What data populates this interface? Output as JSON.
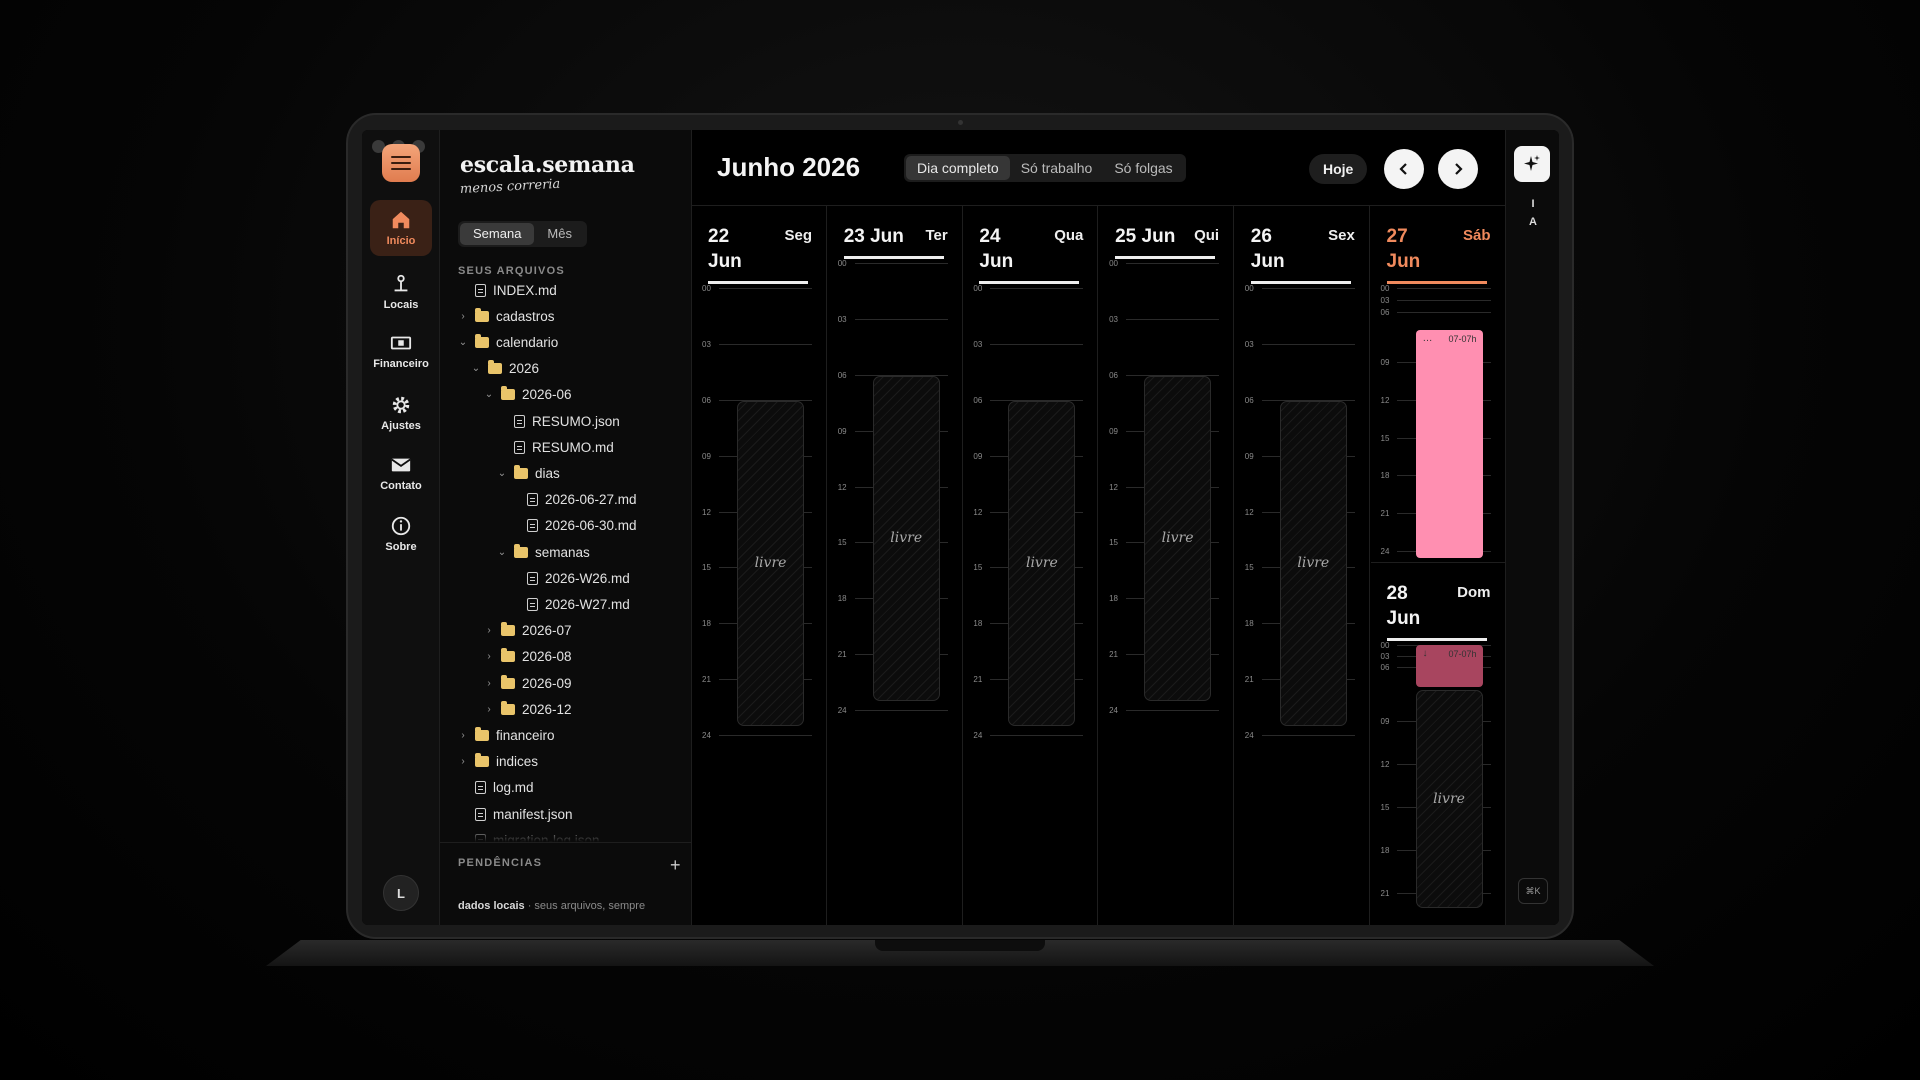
{
  "app": {
    "brand": "escala.semana",
    "tagline": "menos correria",
    "view_tabs": [
      {
        "label": "Semana",
        "active": true
      },
      {
        "label": "Mês",
        "active": false
      }
    ],
    "user_initial": "L"
  },
  "rail": {
    "items": [
      {
        "label": "Início",
        "icon": "home-icon",
        "active": true
      },
      {
        "label": "Locais",
        "icon": "location-pin-icon",
        "active": false
      },
      {
        "label": "Financeiro",
        "icon": "money-icon",
        "active": false
      },
      {
        "label": "Ajustes",
        "icon": "gear-icon",
        "active": false
      },
      {
        "label": "Contato",
        "icon": "envelope-icon",
        "active": false
      },
      {
        "label": "Sobre",
        "icon": "info-icon",
        "active": false
      }
    ]
  },
  "files": {
    "section_title": "SEUS ARQUIVOS",
    "tree": [
      {
        "label": "INDEX.md",
        "type": "file",
        "depth": 0
      },
      {
        "label": "cadastros",
        "type": "folder",
        "depth": 0,
        "expanded": false
      },
      {
        "label": "calendario",
        "type": "folder",
        "depth": 0,
        "expanded": true
      },
      {
        "label": "2026",
        "type": "folder",
        "depth": 1,
        "expanded": true
      },
      {
        "label": "2026-06",
        "type": "folder",
        "depth": 2,
        "expanded": true
      },
      {
        "label": "RESUMO.json",
        "type": "file",
        "depth": 3
      },
      {
        "label": "RESUMO.md",
        "type": "file",
        "depth": 3
      },
      {
        "label": "dias",
        "type": "folder",
        "depth": 3,
        "expanded": true
      },
      {
        "label": "2026-06-27.md",
        "type": "file",
        "depth": 4
      },
      {
        "label": "2026-06-30.md",
        "type": "file",
        "depth": 4
      },
      {
        "label": "semanas",
        "type": "folder",
        "depth": 3,
        "expanded": true
      },
      {
        "label": "2026-W26.md",
        "type": "file",
        "depth": 4
      },
      {
        "label": "2026-W27.md",
        "type": "file",
        "depth": 4
      },
      {
        "label": "2026-07",
        "type": "folder",
        "depth": 2,
        "expanded": false
      },
      {
        "label": "2026-08",
        "type": "folder",
        "depth": 2,
        "expanded": false
      },
      {
        "label": "2026-09",
        "type": "folder",
        "depth": 2,
        "expanded": false
      },
      {
        "label": "2026-12",
        "type": "folder",
        "depth": 2,
        "expanded": false
      },
      {
        "label": "financeiro",
        "type": "folder",
        "depth": 0,
        "expanded": false
      },
      {
        "label": "indices",
        "type": "folder",
        "depth": 0,
        "expanded": false
      },
      {
        "label": "log.md",
        "type": "file",
        "depth": 0
      },
      {
        "label": "manifest.json",
        "type": "file",
        "depth": 0
      },
      {
        "label": "migration-log.json",
        "type": "file",
        "depth": 0
      }
    ],
    "pending_title": "PENDÊNCIAS",
    "footer_bold": "dados locais",
    "footer_text": " · seus arquivos, sempre"
  },
  "calendar": {
    "month_title": "Junho 2026",
    "filters": [
      {
        "label": "Dia completo",
        "active": true
      },
      {
        "label": "Só trabalho",
        "active": false
      },
      {
        "label": "Só folgas",
        "active": false
      }
    ],
    "today_label": "Hoje",
    "free_label": "livre",
    "days": [
      {
        "num": "22",
        "month": "Jun",
        "weekday": "Seg",
        "status": "free"
      },
      {
        "num": "23",
        "month": "Jun",
        "weekday": "Ter",
        "status": "free"
      },
      {
        "num": "24",
        "month": "Jun",
        "weekday": "Qua",
        "status": "free"
      },
      {
        "num": "25",
        "month": "Jun",
        "weekday": "Qui",
        "status": "free"
      },
      {
        "num": "26",
        "month": "Jun",
        "weekday": "Sex",
        "status": "free"
      },
      {
        "num": "27",
        "month": "Jun",
        "weekday": "Sáb",
        "status": "work",
        "today": true,
        "shift_label": "07-07h"
      },
      {
        "num": "28",
        "month": "Jun",
        "weekday": "Dom",
        "status": "carry",
        "shift_label": "07-07h"
      }
    ],
    "hour_labels": [
      "00",
      "03",
      "06",
      "09",
      "12",
      "15",
      "18",
      "21",
      "24"
    ]
  },
  "right_rail": {
    "ai_letters": [
      "I",
      "A"
    ],
    "shortcut": "⌘K"
  },
  "colors": {
    "accent": "#f08a5d",
    "shift_pink": "#ff8fb1",
    "shift_dim": "#a8455f"
  }
}
